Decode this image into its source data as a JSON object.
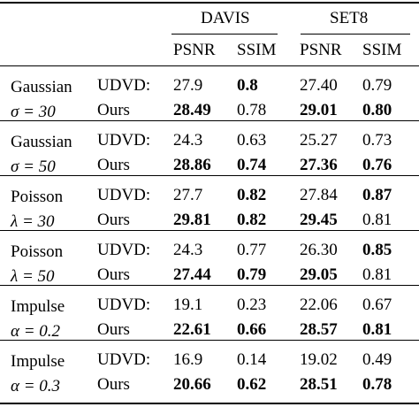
{
  "header": {
    "groups": [
      "DAVIS",
      "SET8"
    ],
    "metrics": [
      "PSNR",
      "SSIM",
      "PSNR",
      "SSIM"
    ]
  },
  "rows": [
    {
      "noise": "Gaussian",
      "param": "σ = 30",
      "methods": [
        {
          "name": "UDVD:",
          "values": [
            "27.9",
            "0.8",
            "27.40",
            "0.79"
          ],
          "bold": [
            false,
            true,
            false,
            false
          ]
        },
        {
          "name": "Ours",
          "values": [
            "28.49",
            "0.78",
            "29.01",
            "0.80"
          ],
          "bold": [
            true,
            false,
            true,
            true
          ]
        }
      ]
    },
    {
      "noise": "Gaussian",
      "param": "σ = 50",
      "methods": [
        {
          "name": "UDVD:",
          "values": [
            "24.3",
            "0.63",
            "25.27",
            "0.73"
          ],
          "bold": [
            false,
            false,
            false,
            false
          ]
        },
        {
          "name": "Ours",
          "values": [
            "28.86",
            "0.74",
            "27.36",
            "0.76"
          ],
          "bold": [
            true,
            true,
            true,
            true
          ]
        }
      ]
    },
    {
      "noise": "Poisson",
      "param": "λ = 30",
      "methods": [
        {
          "name": "UDVD:",
          "values": [
            "27.7",
            "0.82",
            "27.84",
            "0.87"
          ],
          "bold": [
            false,
            true,
            false,
            true
          ]
        },
        {
          "name": "Ours",
          "values": [
            "29.81",
            "0.82",
            "29.45",
            "0.81"
          ],
          "bold": [
            true,
            true,
            true,
            false
          ]
        }
      ]
    },
    {
      "noise": "Poisson",
      "param": "λ = 50",
      "methods": [
        {
          "name": "UDVD:",
          "values": [
            "24.3",
            "0.77",
            "26.30",
            "0.85"
          ],
          "bold": [
            false,
            false,
            false,
            true
          ]
        },
        {
          "name": "Ours",
          "values": [
            "27.44",
            "0.79",
            "29.05",
            "0.81"
          ],
          "bold": [
            true,
            true,
            true,
            false
          ]
        }
      ]
    },
    {
      "noise": "Impulse",
      "param": "α = 0.2",
      "methods": [
        {
          "name": "UDVD:",
          "values": [
            "19.1",
            "0.23",
            "22.06",
            "0.67"
          ],
          "bold": [
            false,
            false,
            false,
            false
          ]
        },
        {
          "name": "Ours",
          "values": [
            "22.61",
            "0.66",
            "28.57",
            "0.81"
          ],
          "bold": [
            true,
            true,
            true,
            true
          ]
        }
      ]
    },
    {
      "noise": "Impulse",
      "param": "α = 0.3",
      "methods": [
        {
          "name": "UDVD:",
          "values": [
            "16.9",
            "0.14",
            "19.02",
            "0.49"
          ],
          "bold": [
            false,
            false,
            false,
            false
          ]
        },
        {
          "name": "Ours",
          "values": [
            "20.66",
            "0.62",
            "28.51",
            "0.78"
          ],
          "bold": [
            true,
            true,
            true,
            true
          ]
        }
      ]
    }
  ]
}
